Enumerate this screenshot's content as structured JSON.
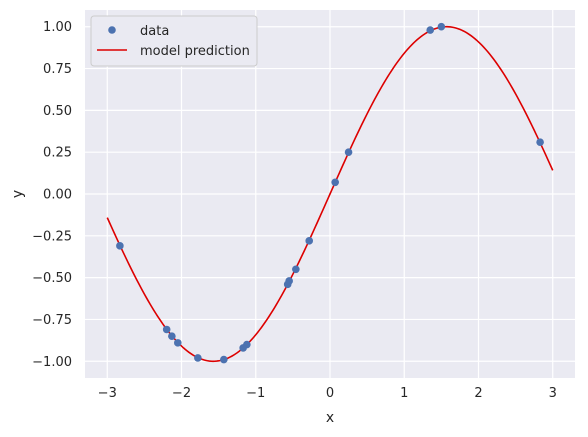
{
  "chart_data": {
    "type": "scatter",
    "title": "",
    "xlabel": "x",
    "ylabel": "y",
    "xlim": [
      -3.3,
      3.3
    ],
    "ylim": [
      -1.1,
      1.1
    ],
    "grid": true,
    "legend_position": "top-left",
    "x_ticks": [
      -3,
      -2,
      -1,
      0,
      1,
      2,
      3
    ],
    "x_tick_labels": [
      "−3",
      "−2",
      "−1",
      "0",
      "1",
      "2",
      "3"
    ],
    "y_ticks": [
      -1.0,
      -0.75,
      -0.5,
      -0.25,
      0.0,
      0.25,
      0.5,
      0.75,
      1.0
    ],
    "y_tick_labels": [
      "−1.00",
      "−0.75",
      "−0.50",
      "−0.25",
      "0.00",
      "0.25",
      "0.50",
      "0.75",
      "1.00"
    ],
    "series": [
      {
        "name": "data",
        "kind": "scatter",
        "color": "#4c72b0",
        "x": [
          -2.83,
          -2.2,
          -2.13,
          -2.05,
          -1.78,
          -1.43,
          -1.17,
          -1.12,
          -0.57,
          -0.55,
          -0.46,
          -0.28,
          0.07,
          0.25,
          1.35,
          1.5,
          2.83
        ],
        "y": [
          -0.31,
          -0.81,
          -0.85,
          -0.89,
          -0.98,
          -0.99,
          -0.92,
          -0.9,
          -0.54,
          -0.52,
          -0.45,
          -0.28,
          0.07,
          0.25,
          0.98,
          1.0,
          0.31
        ]
      },
      {
        "name": "model prediction",
        "kind": "line",
        "color": "#dd0000",
        "function": "sin",
        "x_range": [
          -3.0,
          3.0
        ]
      }
    ]
  },
  "colors": {
    "plot_background": "#eaeaf2",
    "grid": "#ffffff",
    "text": "#262626"
  }
}
